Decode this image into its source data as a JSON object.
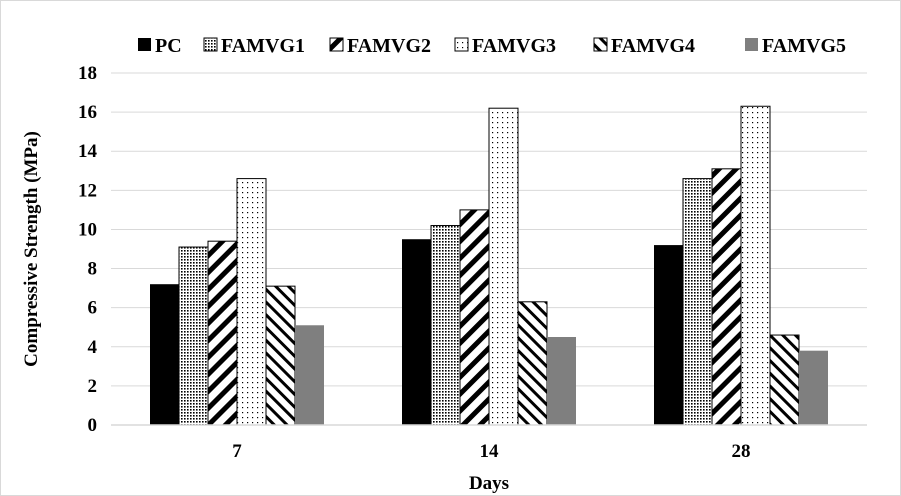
{
  "chart_data": {
    "type": "bar",
    "title": "",
    "xlabel": "Days",
    "ylabel": "Compressive Strength (MPa)",
    "categories": [
      "7",
      "14",
      "28"
    ],
    "ylim": [
      0,
      18
    ],
    "yticks": [
      0,
      2,
      4,
      6,
      8,
      10,
      12,
      14,
      16,
      18
    ],
    "grid": true,
    "legend_position": "top",
    "series": [
      {
        "name": "PC",
        "pattern": "solid-black",
        "values": [
          7.2,
          9.5,
          9.2
        ]
      },
      {
        "name": "FAMVG1",
        "pattern": "dense-dots",
        "values": [
          9.1,
          10.2,
          12.6
        ]
      },
      {
        "name": "FAMVG2",
        "pattern": "wide-diagonal",
        "values": [
          9.4,
          11.0,
          13.1
        ]
      },
      {
        "name": "FAMVG3",
        "pattern": "sparse-dots",
        "values": [
          12.6,
          16.2,
          16.3
        ]
      },
      {
        "name": "FAMVG4",
        "pattern": "thin-diagonal",
        "values": [
          7.1,
          6.3,
          4.6
        ]
      },
      {
        "name": "FAMVG5",
        "pattern": "solid-gray",
        "values": [
          5.1,
          4.5,
          3.8
        ]
      }
    ],
    "colors": {
      "black": "#000000",
      "gray": "#7f7f7f",
      "grid": "#d9d9d9"
    }
  }
}
